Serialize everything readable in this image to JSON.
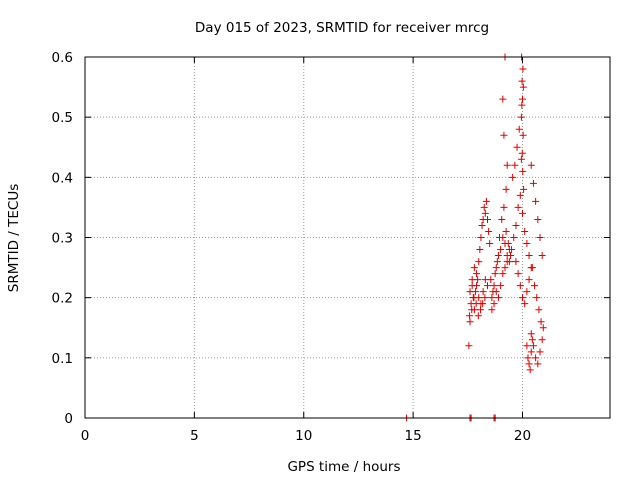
{
  "chart_data": {
    "type": "scatter",
    "title": "Day 015 of 2023, SRMTID for receiver mrcg",
    "xlabel": "GPS time / hours",
    "ylabel": "SRMTID / TECUs",
    "xlim": [
      0,
      24
    ],
    "ylim": [
      0,
      0.6
    ],
    "xticks": [
      0,
      5,
      10,
      15,
      20
    ],
    "xtick_labels": [
      "0",
      "5",
      "10",
      "15",
      "20"
    ],
    "yticks": [
      0,
      0.1,
      0.2,
      0.3,
      0.4,
      0.5,
      0.6
    ],
    "ytick_labels": [
      "0",
      "0.1",
      "0.2",
      "0.3",
      "0.4",
      "0.5",
      "0.6"
    ],
    "grid": true,
    "marker": "+",
    "color": "#e00000",
    "series": [
      {
        "x": [
          14.7,
          17.6,
          17.65,
          18.7,
          18.75,
          17.55,
          17.6,
          17.65,
          17.7,
          17.75,
          17.8,
          17.85,
          17.9,
          17.95,
          18.0,
          18.05,
          18.1,
          18.15,
          18.2,
          18.25,
          18.3,
          18.35,
          18.4,
          18.45,
          18.5,
          17.6,
          17.7,
          17.8,
          17.9,
          18.0,
          18.1,
          18.2,
          18.3,
          18.4,
          17.58,
          17.68,
          17.78,
          17.88,
          17.98,
          18.08,
          18.18,
          18.28,
          18.6,
          18.7,
          18.8,
          18.9,
          19.0,
          19.1,
          19.2,
          19.3,
          19.4,
          19.5,
          18.55,
          18.65,
          18.75,
          18.85,
          18.95,
          19.05,
          19.15,
          19.25,
          19.35,
          19.45,
          18.6,
          18.7,
          18.8,
          18.9,
          19.0,
          19.1,
          19.2,
          19.3,
          19.4,
          19.6,
          19.7,
          19.8,
          19.9,
          20.0,
          20.1,
          20.2,
          20.3,
          19.55,
          19.65,
          19.75,
          19.85,
          19.95,
          20.05,
          19.7,
          19.8,
          19.9,
          20.0,
          20.1,
          20.2,
          20.3,
          20.4,
          19.95,
          20.0,
          19.98,
          20.02,
          19.96,
          20.04,
          19.97,
          20.03,
          19.99,
          20.01,
          19.1,
          19.2,
          19.15,
          19.3,
          19.25,
          20.4,
          20.5,
          20.6,
          20.7,
          20.8,
          20.9,
          20.45,
          20.55,
          20.65,
          20.75,
          20.85,
          20.4,
          20.5,
          20.6,
          20.7,
          20.8,
          20.9,
          20.95,
          20.2,
          20.25,
          20.3,
          20.35,
          20.4,
          20.45
        ],
        "y": [
          0.0,
          0.0,
          0.0,
          0.0,
          0.0,
          0.12,
          0.16,
          0.19,
          0.22,
          0.2,
          0.18,
          0.21,
          0.24,
          0.23,
          0.26,
          0.28,
          0.3,
          0.32,
          0.33,
          0.35,
          0.34,
          0.36,
          0.33,
          0.31,
          0.29,
          0.21,
          0.23,
          0.25,
          0.22,
          0.2,
          0.19,
          0.21,
          0.23,
          0.22,
          0.17,
          0.18,
          0.2,
          0.19,
          0.17,
          0.18,
          0.19,
          0.2,
          0.2,
          0.22,
          0.25,
          0.27,
          0.28,
          0.3,
          0.29,
          0.27,
          0.26,
          0.28,
          0.23,
          0.21,
          0.24,
          0.26,
          0.3,
          0.33,
          0.35,
          0.31,
          0.29,
          0.27,
          0.18,
          0.19,
          0.21,
          0.2,
          0.22,
          0.24,
          0.25,
          0.26,
          0.28,
          0.3,
          0.32,
          0.35,
          0.37,
          0.34,
          0.31,
          0.29,
          0.27,
          0.4,
          0.42,
          0.45,
          0.48,
          0.43,
          0.38,
          0.26,
          0.24,
          0.22,
          0.2,
          0.19,
          0.21,
          0.23,
          0.25,
          0.5,
          0.53,
          0.56,
          0.58,
          0.6,
          0.55,
          0.52,
          0.47,
          0.44,
          0.41,
          0.53,
          0.6,
          0.47,
          0.42,
          0.38,
          0.42,
          0.39,
          0.36,
          0.33,
          0.3,
          0.27,
          0.25,
          0.22,
          0.2,
          0.18,
          0.16,
          0.14,
          0.12,
          0.1,
          0.09,
          0.11,
          0.13,
          0.15,
          0.12,
          0.1,
          0.09,
          0.08,
          0.11,
          0.13
        ]
      }
    ]
  }
}
